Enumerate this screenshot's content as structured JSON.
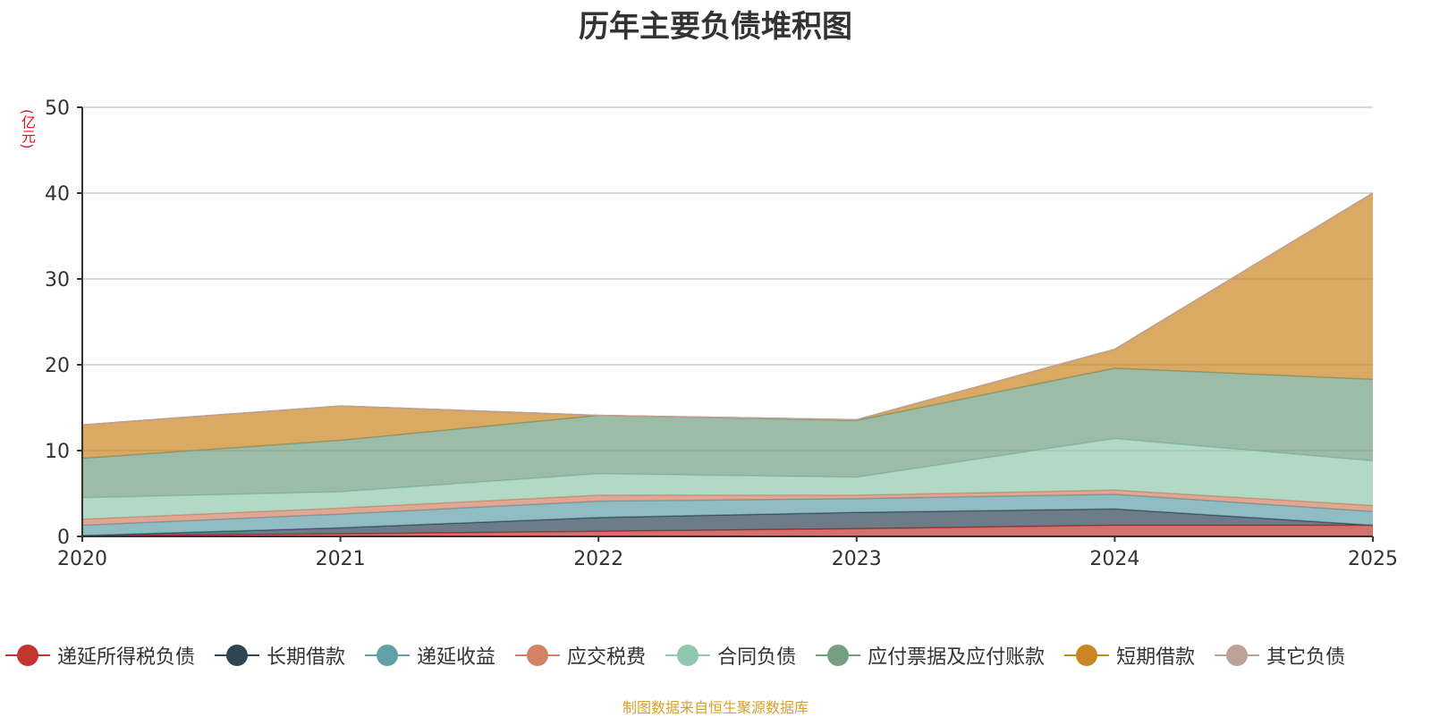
{
  "chart_data": {
    "type": "area",
    "stacked": true,
    "title": "历年主要负债堆积图",
    "unit": "(亿元)",
    "xlabel": "",
    "ylabel": "(亿元)",
    "ylim": [
      0,
      50
    ],
    "y_ticks": [
      0,
      10,
      20,
      30,
      40,
      50
    ],
    "categories": [
      "2020",
      "2021",
      "2022",
      "2023",
      "2024",
      "2025"
    ],
    "grid": true,
    "legend_position": "bottom",
    "series": [
      {
        "name": "递延所得税负债",
        "color": "#c23531",
        "values": [
          0.1,
          0.3,
          0.6,
          0.9,
          1.3,
          1.3
        ]
      },
      {
        "name": "长期借款",
        "color": "#2f4554",
        "values": [
          0.0,
          0.7,
          1.6,
          1.9,
          1.9,
          0.0
        ]
      },
      {
        "name": "递延收益",
        "color": "#61a0a8",
        "values": [
          1.2,
          1.6,
          1.9,
          1.6,
          1.7,
          1.6
        ]
      },
      {
        "name": "应交税费",
        "color": "#d48265",
        "values": [
          0.7,
          0.7,
          0.7,
          0.4,
          0.5,
          0.7
        ]
      },
      {
        "name": "合同负债",
        "color": "#91c7ae",
        "values": [
          2.5,
          1.9,
          2.5,
          2.1,
          6.0,
          5.2
        ]
      },
      {
        "name": "应付票据及应付账款",
        "color": "#749f83",
        "values": [
          4.6,
          6.0,
          6.8,
          6.6,
          8.2,
          9.5
        ]
      },
      {
        "name": "短期借款",
        "color": "#ca8622",
        "values": [
          3.9,
          4.0,
          0.0,
          0.1,
          2.2,
          21.7
        ]
      },
      {
        "name": "其它负债",
        "color": "#bda29a",
        "values": [
          0.0,
          0.0,
          0.0,
          0.0,
          0.0,
          0.0
        ]
      }
    ]
  },
  "footer": {
    "source_note": "制图数据来自恒生聚源数据库"
  }
}
